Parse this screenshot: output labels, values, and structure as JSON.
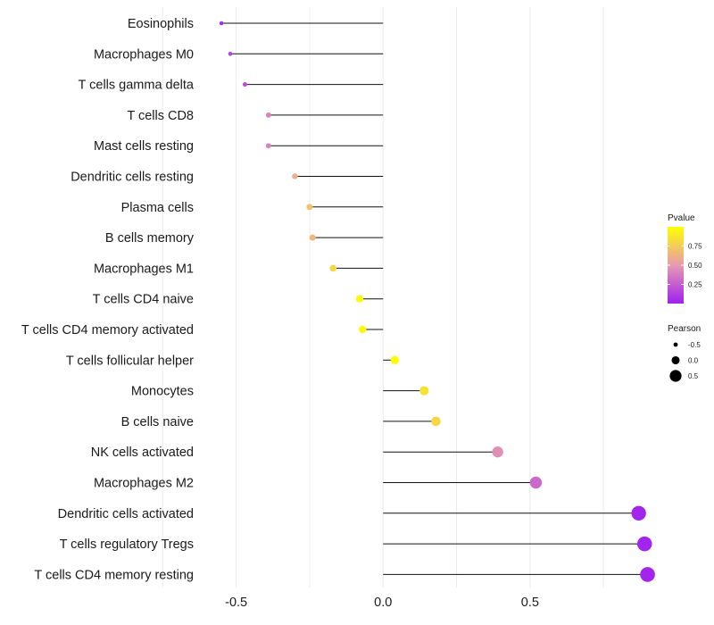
{
  "chart_data": {
    "type": "lollipop",
    "title": "",
    "xlabel": "",
    "ylabel": "",
    "xlim": [
      -1.0,
      0.95
    ],
    "xticks": [
      -0.5,
      0.0,
      0.5
    ],
    "xtick_labels": [
      "-0.5",
      "0.0",
      "0.5"
    ],
    "grid": true,
    "categories": [
      "Eosinophils",
      "Macrophages M0",
      "T cells gamma delta",
      "T cells CD8",
      "Mast cells resting",
      "Dendritic cells resting",
      "Plasma cells",
      "B cells memory",
      "Macrophages M1",
      "T cells CD4 naive",
      "T cells CD4 memory activated",
      "T cells follicular helper",
      "Monocytes",
      "B cells naive",
      "NK cells activated",
      "Macrophages M2",
      "Dendritic cells activated",
      "T cells regulatory  Tregs",
      "T cells CD4 memory resting"
    ],
    "pearson": [
      -0.55,
      -0.52,
      -0.47,
      -0.39,
      -0.39,
      -0.3,
      -0.25,
      -0.24,
      -0.17,
      -0.08,
      -0.07,
      0.04,
      0.14,
      0.18,
      0.39,
      0.52,
      0.87,
      0.89,
      0.9
    ],
    "pvalue": [
      0.05,
      0.15,
      0.2,
      0.4,
      0.4,
      0.6,
      0.7,
      0.65,
      0.8,
      0.98,
      0.97,
      0.99,
      0.85,
      0.8,
      0.45,
      0.3,
      0.02,
      0.02,
      0.02
    ],
    "color_legend": {
      "title": "Pvalue",
      "ticks": [
        0.75,
        0.5,
        0.25
      ],
      "tick_labels": [
        "0.75",
        "0.50",
        "0.25"
      ],
      "range": [
        0.0,
        1.0
      ],
      "low_color": "#a020f0",
      "mid_color": "#e79ab0",
      "high_color": "#ffff00"
    },
    "size_legend": {
      "title": "Pearson",
      "values": [
        -0.5,
        0.0,
        0.5
      ],
      "labels": [
        "-0.5",
        "0.0",
        "0.5"
      ]
    }
  }
}
